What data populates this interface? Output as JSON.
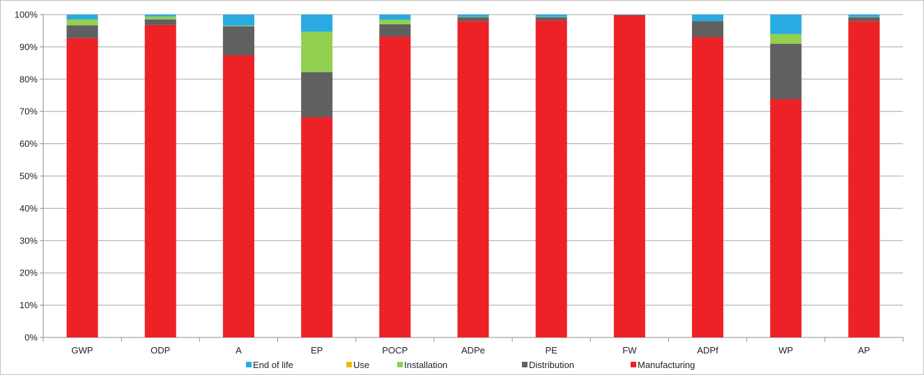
{
  "chart_data": {
    "type": "bar",
    "stacked": true,
    "categories": [
      "GWP",
      "ODP",
      "A",
      "EP",
      "POCP",
      "ADPe",
      "PE",
      "FW",
      "ADPf",
      "WP",
      "AP"
    ],
    "series": [
      {
        "name": "Manufacturing",
        "color": "#ec2227",
        "values": [
          92.7,
          96.8,
          87.4,
          68.2,
          93.2,
          98.0,
          98.2,
          99.8,
          93.0,
          73.8,
          98.0
        ]
      },
      {
        "name": "Distribution",
        "color": "#606060",
        "values": [
          4.0,
          1.7,
          9.0,
          14.0,
          3.8,
          1.2,
          1.0,
          0.1,
          5.0,
          17.2,
          1.2
        ]
      },
      {
        "name": "Installation",
        "color": "#92d050",
        "values": [
          1.8,
          0.9,
          0.2,
          12.5,
          1.4,
          0.1,
          0.1,
          0.0,
          0.0,
          3.0,
          0.1
        ]
      },
      {
        "name": "Use",
        "color": "#f5b800",
        "values": [
          0,
          0,
          0,
          0,
          0,
          0,
          0,
          0,
          0,
          0,
          0
        ]
      },
      {
        "name": "End of life",
        "color": "#29abe2",
        "values": [
          1.5,
          0.6,
          3.4,
          5.3,
          1.6,
          0.7,
          0.7,
          0.1,
          2.0,
          6.0,
          0.7
        ]
      }
    ],
    "legend_order": [
      "End of life",
      "Use",
      "Installation",
      "Distribution",
      "Manufacturing"
    ],
    "ylim": [
      0,
      100
    ],
    "yticks": [
      "0%",
      "10%",
      "20%",
      "30%",
      "40%",
      "50%",
      "60%",
      "70%",
      "80%",
      "90%",
      "100%"
    ],
    "grid": true,
    "legend_position": "bottom",
    "title": "",
    "xlabel": "",
    "ylabel": ""
  }
}
